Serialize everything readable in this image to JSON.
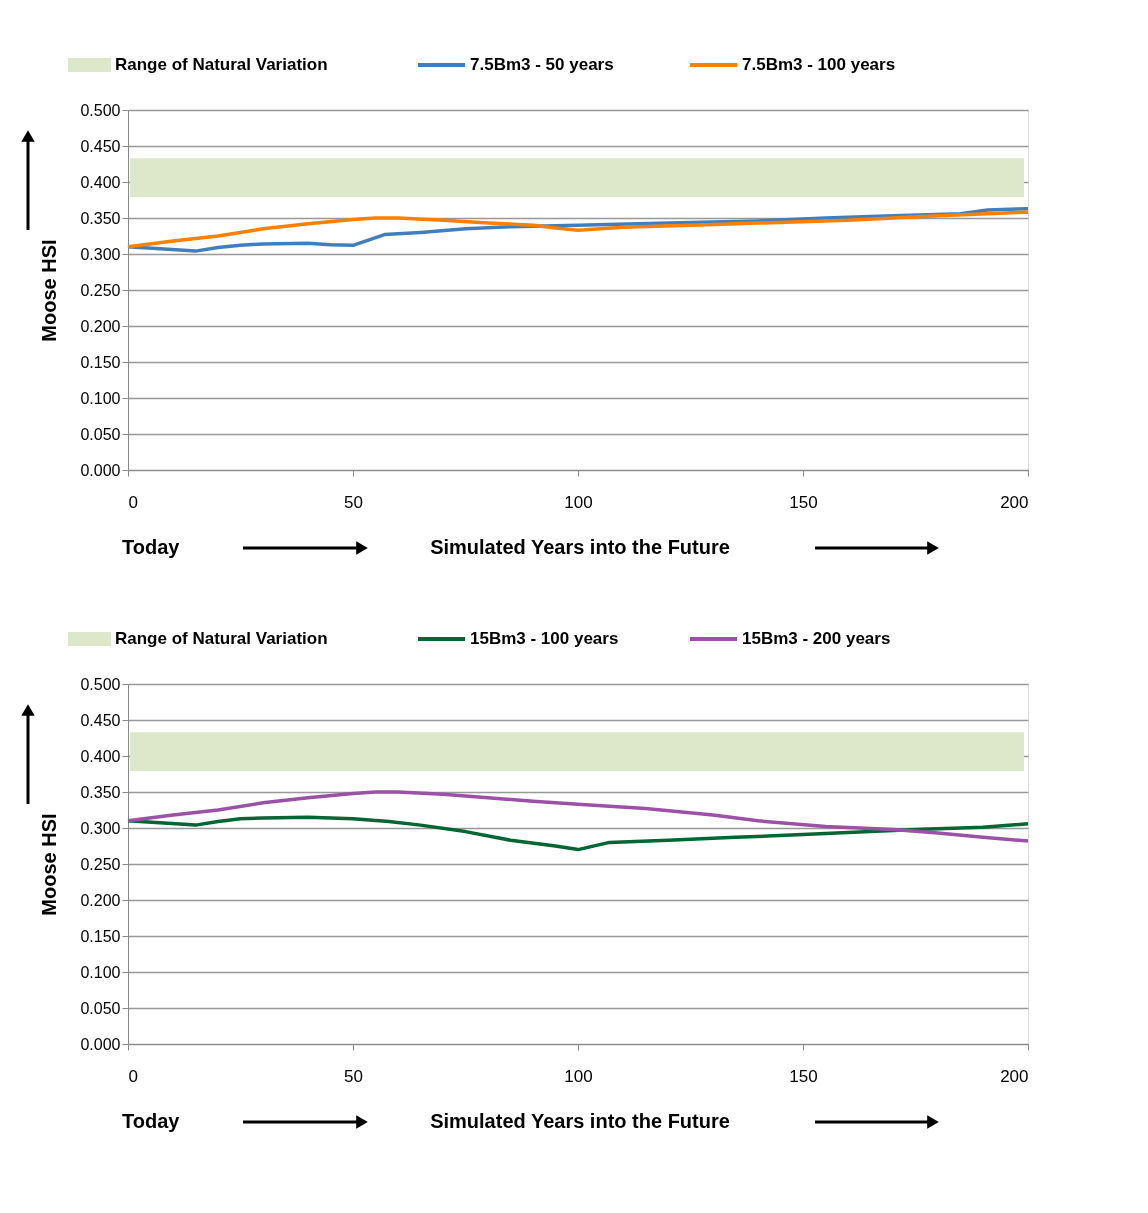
{
  "chart_data": [
    {
      "type": "line",
      "xlabel": "Simulated Years into the Future",
      "ylabel": "Moose HSI",
      "annotations": [
        "Today"
      ],
      "legend_title": null,
      "xlim": [
        0,
        200
      ],
      "ylim": [
        0,
        0.5
      ],
      "xticks": [
        0,
        50,
        100,
        150,
        200
      ],
      "yticks": [
        {
          "value": 0,
          "label": "0.000"
        },
        {
          "value": 0.05,
          "label": "0.050"
        },
        {
          "value": 0.1,
          "label": "0.100"
        },
        {
          "value": 0.15,
          "label": "0.150"
        },
        {
          "value": 0.2,
          "label": "0.200"
        },
        {
          "value": 0.25,
          "label": "0.250"
        },
        {
          "value": 0.3,
          "label": "0.300"
        },
        {
          "value": 0.35,
          "label": "0.350"
        },
        {
          "value": 0.4,
          "label": "0.400"
        },
        {
          "value": 0.45,
          "label": "0.450"
        },
        {
          "value": 0.5,
          "label": "0.500"
        }
      ],
      "grid": "y",
      "legend": "top",
      "marker": "none",
      "line_style": "solid",
      "bands": [
        {
          "axis": "y",
          "from": 0.379,
          "to": 0.433,
          "label": "Range of Natural Variation",
          "color": "#dde8cb"
        }
      ],
      "series": [
        {
          "name": "7.5Bm3 - 50 years",
          "color": "#3f7fbf",
          "x": [
            0,
            8,
            15,
            20,
            25,
            30,
            40,
            45,
            50,
            57,
            65,
            75,
            85,
            100,
            120,
            140,
            155,
            170,
            185,
            191,
            200
          ],
          "values": [
            0.31,
            0.307,
            0.304,
            0.309,
            0.312,
            0.314,
            0.315,
            0.313,
            0.312,
            0.327,
            0.33,
            0.335,
            0.338,
            0.34,
            0.343,
            0.346,
            0.35,
            0.353,
            0.356,
            0.361,
            0.363
          ]
        },
        {
          "name": "7.5Bm3 - 100 years",
          "color": "#ff8000",
          "x": [
            0,
            10,
            20,
            30,
            40,
            50,
            55,
            60,
            70,
            80,
            90,
            95,
            100,
            110,
            125,
            140,
            160,
            170,
            180,
            195,
            200
          ],
          "values": [
            0.31,
            0.318,
            0.325,
            0.335,
            0.342,
            0.348,
            0.35,
            0.35,
            0.347,
            0.343,
            0.34,
            0.336,
            0.333,
            0.337,
            0.34,
            0.343,
            0.347,
            0.35,
            0.353,
            0.357,
            0.358
          ]
        }
      ]
    },
    {
      "type": "line",
      "xlabel": "Simulated Years into the Future",
      "ylabel": "Moose HSI",
      "annotations": [
        "Today"
      ],
      "xlim": [
        0,
        200
      ],
      "ylim": [
        0,
        0.5
      ],
      "xticks": [
        0,
        50,
        100,
        150,
        200
      ],
      "yticks": [
        {
          "value": 0,
          "label": "0.000"
        },
        {
          "value": 0.05,
          "label": "0.050"
        },
        {
          "value": 0.1,
          "label": "0.100"
        },
        {
          "value": 0.15,
          "label": "0.150"
        },
        {
          "value": 0.2,
          "label": "0.200"
        },
        {
          "value": 0.25,
          "label": "0.250"
        },
        {
          "value": 0.3,
          "label": "0.300"
        },
        {
          "value": 0.35,
          "label": "0.350"
        },
        {
          "value": 0.4,
          "label": "0.400"
        },
        {
          "value": 0.45,
          "label": "0.450"
        },
        {
          "value": 0.5,
          "label": "0.500"
        }
      ],
      "grid": "y",
      "legend": "top",
      "marker": "none",
      "line_style": "solid",
      "bands": [
        {
          "axis": "y",
          "from": 0.379,
          "to": 0.433,
          "label": "Range of Natural Variation",
          "color": "#dde8cb"
        }
      ],
      "series": [
        {
          "name": "15Bm3 - 100 years",
          "color": "#006633",
          "x": [
            0,
            8,
            15,
            20,
            25,
            30,
            40,
            50,
            58,
            65,
            75,
            85,
            95,
            100,
            107,
            120,
            135,
            150,
            165,
            175,
            190,
            200
          ],
          "values": [
            0.31,
            0.307,
            0.304,
            0.309,
            0.313,
            0.314,
            0.315,
            0.313,
            0.309,
            0.304,
            0.295,
            0.283,
            0.275,
            0.27,
            0.28,
            0.283,
            0.287,
            0.291,
            0.295,
            0.298,
            0.301,
            0.306
          ]
        },
        {
          "name": "15Bm3 - 200 years",
          "color": "#9b52a6",
          "x": [
            0,
            10,
            20,
            30,
            40,
            50,
            55,
            60,
            70,
            80,
            90,
            100,
            115,
            130,
            140,
            155,
            170,
            180,
            190,
            200
          ],
          "values": [
            0.31,
            0.318,
            0.325,
            0.335,
            0.342,
            0.348,
            0.35,
            0.35,
            0.347,
            0.342,
            0.337,
            0.333,
            0.327,
            0.318,
            0.31,
            0.302,
            0.298,
            0.293,
            0.287,
            0.282
          ]
        }
      ]
    }
  ]
}
